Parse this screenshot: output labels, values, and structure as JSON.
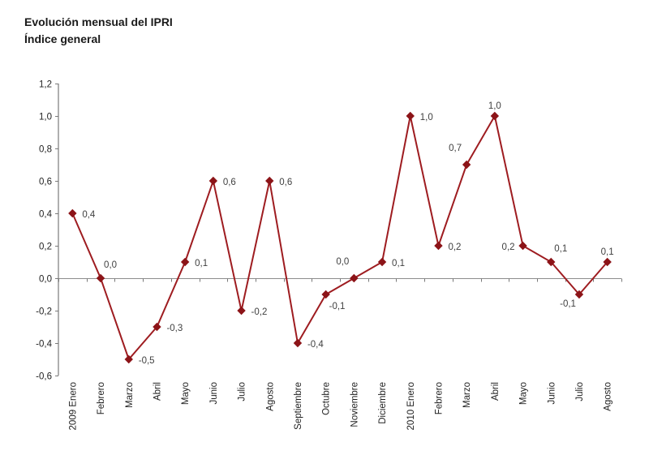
{
  "title": {
    "line1": "Evolución mensual del IPRI",
    "line2": "Índice general"
  },
  "chart_data": {
    "type": "line",
    "title": "Evolución mensual del IPRI",
    "subtitle": "Índice general",
    "categories": [
      "2009 Enero",
      "Febrero",
      "Marzo",
      "Abril",
      "Mayo",
      "Junio",
      "Julio",
      "Agosto",
      "Septiembre",
      "Octubre",
      "Noviembre",
      "Diciembre",
      "2010 Enero",
      "Febrero",
      "Marzo",
      "Abril",
      "Mayo",
      "Junio",
      "Julio",
      "Agosto"
    ],
    "values": [
      0.4,
      0.0,
      -0.5,
      -0.3,
      0.1,
      0.6,
      -0.2,
      0.6,
      -0.4,
      -0.1,
      0.0,
      0.1,
      1.0,
      0.2,
      0.7,
      1.0,
      0.2,
      0.1,
      -0.1,
      0.1
    ],
    "point_labels": [
      "0,4",
      "0,0",
      "-0,5",
      "-0,3",
      "0,1",
      "0,6",
      "-0,2",
      "0,6",
      "-0,4",
      "-0,1",
      "0,0",
      "0,1",
      "1,0",
      "0,2",
      "0,7",
      "1,0",
      "0,2",
      "0,1",
      "-0,1",
      "0,1"
    ],
    "label_positions": [
      "right",
      "above-right",
      "right",
      "right",
      "right",
      "right",
      "right",
      "right",
      "right",
      "below",
      "above-left",
      "right",
      "right",
      "right",
      "above-left",
      "above",
      "left",
      "above-right",
      "below-left",
      "above"
    ],
    "xlabel": "",
    "ylabel": "",
    "ylim": [
      -0.6,
      1.2
    ],
    "ytick_step": 0.2,
    "ytick_labels": [
      "1,2",
      "1,0",
      "0,8",
      "0,6",
      "0,4",
      "0,2",
      "0,0",
      "-0,2",
      "-0,4",
      "-0,6"
    ],
    "grid": "none (zero baseline axis only)",
    "legend": "none",
    "marker": "diamond",
    "colors": {
      "line": "#9e1c20",
      "marker": "#8c1418",
      "zero_axis": "#8c8c8c",
      "y_axis": "#5f5f5f",
      "tick": "#7a7a7a",
      "data_label": "#404040",
      "axis_label": "#1f1f1f",
      "title": "#1a1a1a"
    }
  }
}
